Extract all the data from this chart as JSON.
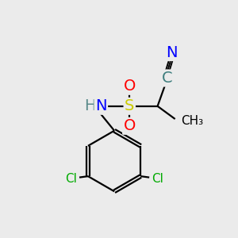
{
  "bg_color": "#ebebeb",
  "atom_colors": {
    "C": "#3d7d7d",
    "N": "#0000ff",
    "O": "#ff0000",
    "S": "#cccc00",
    "Cl": "#00aa00",
    "H": "#5a8a8a"
  },
  "bond_color": "#000000",
  "bond_width": 1.6,
  "font_size_atoms": 14,
  "font_size_small": 11
}
